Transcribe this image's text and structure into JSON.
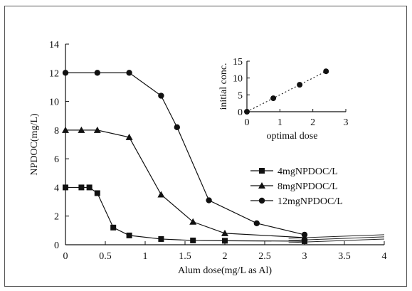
{
  "chart_data": [
    {
      "type": "line",
      "xlabel": "Alum dose(mg/L as Al)",
      "ylabel": "NPDOC(mg/L)",
      "xlim": [
        0,
        4
      ],
      "ylim": [
        0,
        14
      ],
      "x_ticks": [
        "0",
        "0.5",
        "1",
        "1.5",
        "2",
        "2.5",
        "3",
        "3.5",
        "4"
      ],
      "y_ticks": [
        "0",
        "2",
        "4",
        "6",
        "8",
        "10",
        "12",
        "14"
      ],
      "grid": false,
      "legend_position": "right",
      "series": [
        {
          "name": "4mgNPDOC/L",
          "marker": "square",
          "points": [
            [
              0,
              4.0
            ],
            [
              0.2,
              4.0
            ],
            [
              0.3,
              4.0
            ],
            [
              0.4,
              3.6
            ],
            [
              0.6,
              1.2
            ],
            [
              0.8,
              0.65
            ],
            [
              1.2,
              0.4
            ],
            [
              1.6,
              0.3
            ],
            [
              2.0,
              0.28
            ],
            [
              3.0,
              0.25
            ]
          ]
        },
        {
          "name": "8mgNPDOC/L",
          "marker": "triangle",
          "points": [
            [
              0,
              8.0
            ],
            [
              0.2,
              8.0
            ],
            [
              0.4,
              8.0
            ],
            [
              0.8,
              7.5
            ],
            [
              1.2,
              3.5
            ],
            [
              1.6,
              1.6
            ],
            [
              2.0,
              0.8
            ],
            [
              3.0,
              0.5
            ]
          ]
        },
        {
          "name": "12mgNPDOC/L",
          "marker": "circle",
          "points": [
            [
              0,
              12.0
            ],
            [
              0.4,
              12.0
            ],
            [
              0.8,
              12.0
            ],
            [
              1.2,
              10.4
            ],
            [
              1.4,
              8.2
            ],
            [
              1.8,
              3.1
            ],
            [
              2.4,
              1.5
            ],
            [
              3.0,
              0.7
            ]
          ]
        }
      ],
      "extra_lines": [
        {
          "from": [
            2.8,
            0.45
          ],
          "to": [
            4.0,
            0.7
          ]
        },
        {
          "from": [
            2.8,
            0.3
          ],
          "to": [
            4.0,
            0.55
          ]
        },
        {
          "from": [
            2.8,
            0.15
          ],
          "to": [
            4.0,
            0.4
          ]
        }
      ]
    },
    {
      "type": "scatter",
      "xlabel": "optimal dose",
      "ylabel": "initial conc.",
      "xlim": [
        0,
        3
      ],
      "ylim": [
        0,
        15
      ],
      "x_ticks": [
        "0",
        "1",
        "2",
        "3"
      ],
      "y_ticks": [
        "0",
        "5",
        "10",
        "15"
      ],
      "trendline": "dotted",
      "points": [
        [
          0,
          0
        ],
        [
          0.8,
          4
        ],
        [
          1.6,
          8
        ],
        [
          2.4,
          12
        ]
      ]
    }
  ]
}
